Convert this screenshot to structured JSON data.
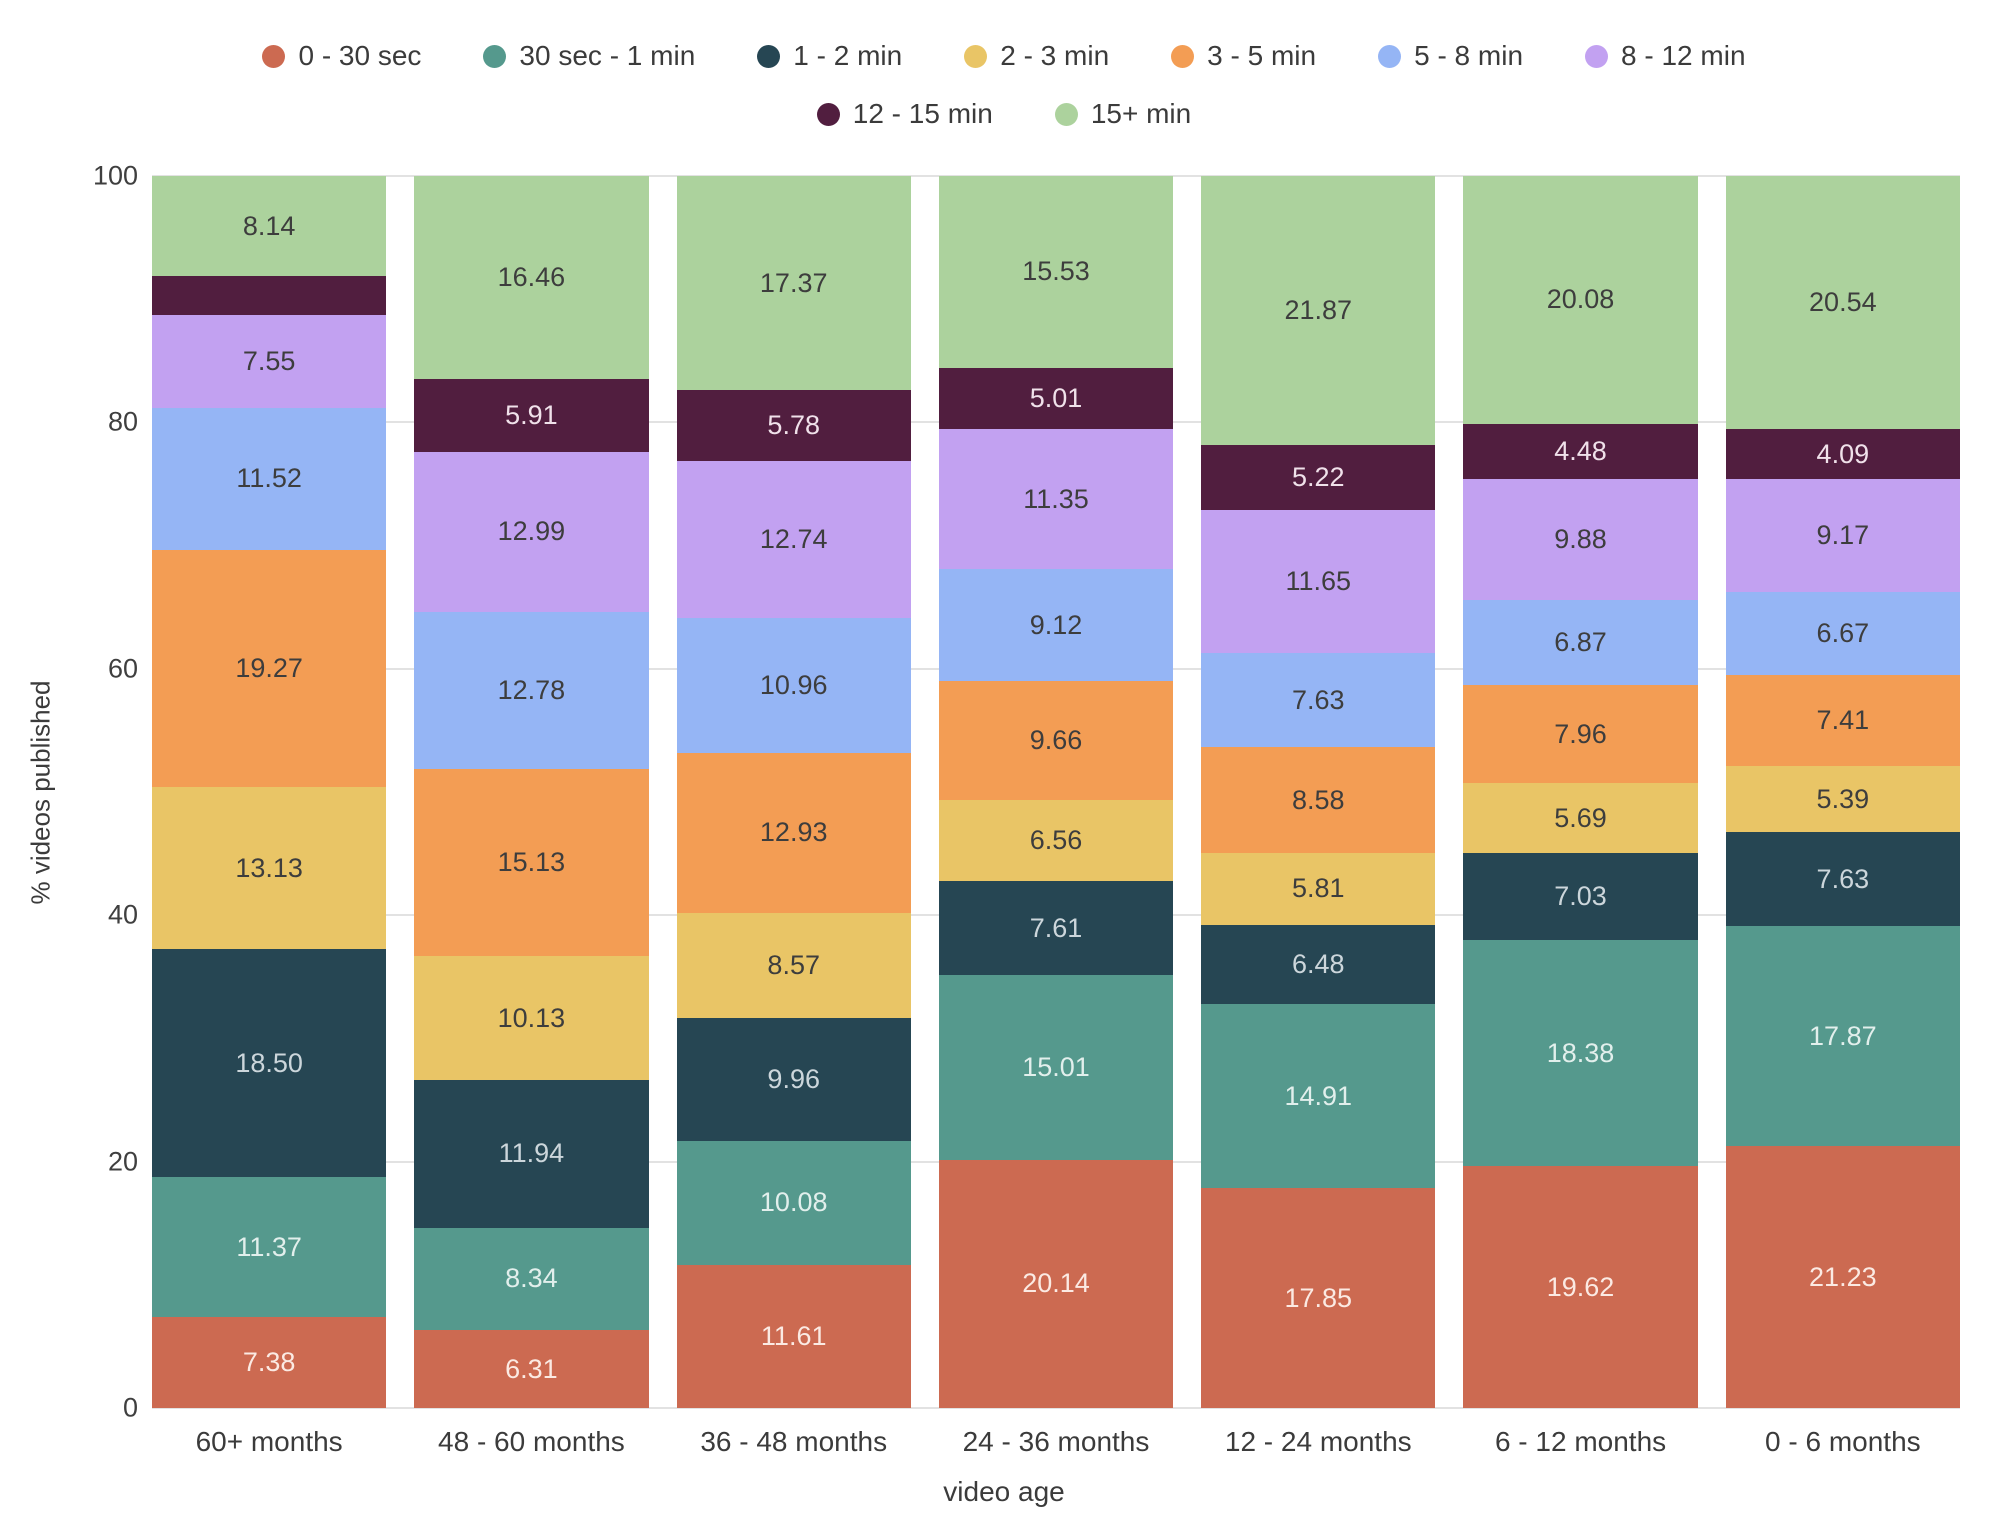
{
  "chart_data": {
    "type": "bar",
    "stacked": true,
    "title": "",
    "xlabel": "video age",
    "ylabel": "% videos published",
    "ylim": [
      0,
      100
    ],
    "yticks": [
      0,
      20,
      40,
      60,
      80,
      100
    ],
    "grid": true,
    "legend_position": "top",
    "value_label_min": 3.5,
    "value_label_decimals": 2,
    "categories": [
      "60+ months",
      "48 - 60 months",
      "36 - 48 months",
      "24 - 36 months",
      "12 - 24 months",
      "6 - 12 months",
      "0 - 6 months"
    ],
    "series": [
      {
        "name": "0 - 30 sec",
        "color": "#cc6a51",
        "label_color": "#fbeae3",
        "values": [
          7.38,
          6.31,
          11.61,
          20.14,
          17.85,
          19.62,
          21.23
        ]
      },
      {
        "name": "30 sec - 1 min",
        "color": "#55998d",
        "label_color": "#e2efec",
        "values": [
          11.37,
          8.34,
          10.08,
          15.01,
          14.91,
          18.38,
          17.87
        ]
      },
      {
        "name": "1 - 2 min",
        "color": "#264653",
        "label_color": "#ccd6db",
        "values": [
          18.5,
          11.94,
          9.96,
          7.61,
          6.48,
          7.03,
          7.63
        ]
      },
      {
        "name": "2 - 3 min",
        "color": "#e9c566",
        "label_color": "#3d3d3d",
        "values": [
          13.13,
          10.13,
          8.57,
          6.56,
          5.81,
          5.69,
          5.39
        ]
      },
      {
        "name": "3 - 5 min",
        "color": "#f39d54",
        "label_color": "#3d3d3d",
        "values": [
          19.27,
          15.13,
          12.93,
          9.66,
          8.58,
          7.96,
          7.41
        ]
      },
      {
        "name": "5 - 8 min",
        "color": "#95b5f5",
        "label_color": "#3d3d3d",
        "values": [
          11.52,
          12.78,
          10.96,
          9.12,
          7.63,
          6.87,
          6.67
        ]
      },
      {
        "name": "8 - 12 min",
        "color": "#c2a1f1",
        "label_color": "#3d3d3d",
        "values": [
          7.55,
          12.99,
          12.74,
          11.35,
          11.65,
          9.88,
          9.17
        ]
      },
      {
        "name": "12 - 15 min",
        "color": "#511e3f",
        "label_color": "#f0e1ea",
        "values": [
          3.14,
          5.91,
          5.78,
          5.01,
          5.22,
          4.48,
          4.09
        ]
      },
      {
        "name": "15+ min",
        "color": "#acd29d",
        "label_color": "#3d3d3d",
        "values": [
          8.14,
          16.46,
          17.37,
          15.53,
          21.87,
          20.08,
          20.54
        ]
      }
    ]
  }
}
